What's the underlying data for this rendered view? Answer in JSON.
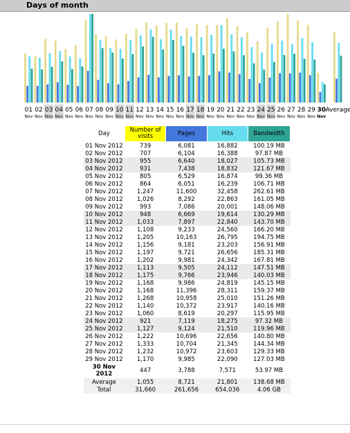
{
  "header": {
    "title": "Days of month"
  },
  "chart": {
    "days": [
      [
        "01",
        "Nov"
      ],
      [
        "02",
        "Nov"
      ],
      [
        "03",
        "Nov"
      ],
      [
        "04",
        "Nov"
      ],
      [
        "05",
        "Nov"
      ],
      [
        "06",
        "Nov"
      ],
      [
        "07",
        "Nov"
      ],
      [
        "08",
        "Nov"
      ],
      [
        "09",
        "Nov"
      ],
      [
        "10",
        "Nov"
      ],
      [
        "11",
        "Nov"
      ],
      [
        "12",
        "Nov"
      ],
      [
        "13",
        "Nov"
      ],
      [
        "14",
        "Nov"
      ],
      [
        "15",
        "Nov"
      ],
      [
        "16",
        "Nov"
      ],
      [
        "17",
        "Nov"
      ],
      [
        "18",
        "Nov"
      ],
      [
        "19",
        "Nov"
      ],
      [
        "20",
        "Nov"
      ],
      [
        "21",
        "Nov"
      ],
      [
        "22",
        "Nov"
      ],
      [
        "23",
        "Nov"
      ],
      [
        "24",
        "Nov"
      ],
      [
        "25",
        "Nov"
      ],
      [
        "26",
        "Nov"
      ],
      [
        "27",
        "Nov"
      ],
      [
        "28",
        "Nov"
      ],
      [
        "29",
        "Nov"
      ],
      [
        "30",
        "Nov"
      ]
    ],
    "average_label": "Average"
  },
  "table": {
    "columns": [
      "Day",
      "Number of visits",
      "Pages",
      "Hits",
      "Bandwidth"
    ],
    "rows": [
      [
        "01 Nov 2012",
        "739",
        "6,081",
        "16,882",
        "100.19 MB"
      ],
      [
        "02 Nov 2012",
        "707",
        "6,104",
        "16,388",
        "97.87 MB"
      ],
      [
        "03 Nov 2012",
        "955",
        "6,640",
        "18,027",
        "105.73 MB"
      ],
      [
        "04 Nov 2012",
        "931",
        "7,438",
        "18,832",
        "121.67 MB"
      ],
      [
        "05 Nov 2012",
        "805",
        "6,529",
        "16,874",
        "99.36 MB"
      ],
      [
        "06 Nov 2012",
        "864",
        "6,051",
        "16,239",
        "106.71 MB"
      ],
      [
        "07 Nov 2012",
        "1,247",
        "11,600",
        "32,458",
        "262.61 MB"
      ],
      [
        "08 Nov 2012",
        "1,026",
        "8,292",
        "22,863",
        "161.05 MB"
      ],
      [
        "09 Nov 2012",
        "993",
        "7,086",
        "20,001",
        "148.06 MB"
      ],
      [
        "10 Nov 2012",
        "948",
        "6,669",
        "19,614",
        "130.29 MB"
      ],
      [
        "11 Nov 2012",
        "1,033",
        "7,897",
        "22,840",
        "143.70 MB"
      ],
      [
        "12 Nov 2012",
        "1,108",
        "9,233",
        "24,560",
        "166.20 MB"
      ],
      [
        "13 Nov 2012",
        "1,205",
        "10,163",
        "26,795",
        "194.75 MB"
      ],
      [
        "14 Nov 2012",
        "1,156",
        "9,181",
        "23,203",
        "156.91 MB"
      ],
      [
        "15 Nov 2012",
        "1,197",
        "9,721",
        "26,656",
        "185.31 MB"
      ],
      [
        "16 Nov 2012",
        "1,202",
        "9,981",
        "24,342",
        "167.81 MB"
      ],
      [
        "17 Nov 2012",
        "1,113",
        "9,505",
        "24,112",
        "147.51 MB"
      ],
      [
        "18 Nov 2012",
        "1,175",
        "9,766",
        "23,946",
        "140.03 MB"
      ],
      [
        "19 Nov 2012",
        "1,168",
        "9,986",
        "24,819",
        "145.15 MB"
      ],
      [
        "20 Nov 2012",
        "1,168",
        "11,396",
        "28,311",
        "159.37 MB"
      ],
      [
        "21 Nov 2012",
        "1,268",
        "10,958",
        "25,010",
        "151.26 MB"
      ],
      [
        "22 Nov 2012",
        "1,140",
        "10,372",
        "23,917",
        "140.16 MB"
      ],
      [
        "23 Nov 2012",
        "1,060",
        "8,619",
        "20,297",
        "115.95 MB"
      ],
      [
        "24 Nov 2012",
        "921",
        "7,119",
        "18,275",
        "97.32 MB"
      ],
      [
        "25 Nov 2012",
        "1,127",
        "9,124",
        "21,510",
        "119.96 MB"
      ],
      [
        "26 Nov 2012",
        "1,222",
        "10,696",
        "22,656",
        "140.80 MB"
      ],
      [
        "27 Nov 2012",
        "1,333",
        "10,704",
        "21,345",
        "144.34 MB"
      ],
      [
        "28 Nov 2012",
        "1,232",
        "10,972",
        "23,603",
        "129.33 MB"
      ],
      [
        "29 Nov 2012",
        "1,170",
        "9,985",
        "22,090",
        "127.03 MB"
      ],
      [
        "30 Nov 2012",
        "447",
        "3,788",
        "7,571",
        "53.97 MB"
      ]
    ],
    "average": [
      "Average",
      "1,055",
      "8,721",
      "21,801",
      "138.68 MB"
    ],
    "total": [
      "Total",
      "31,660",
      "261,656",
      "654,036",
      "4.06 GB"
    ]
  }
}
